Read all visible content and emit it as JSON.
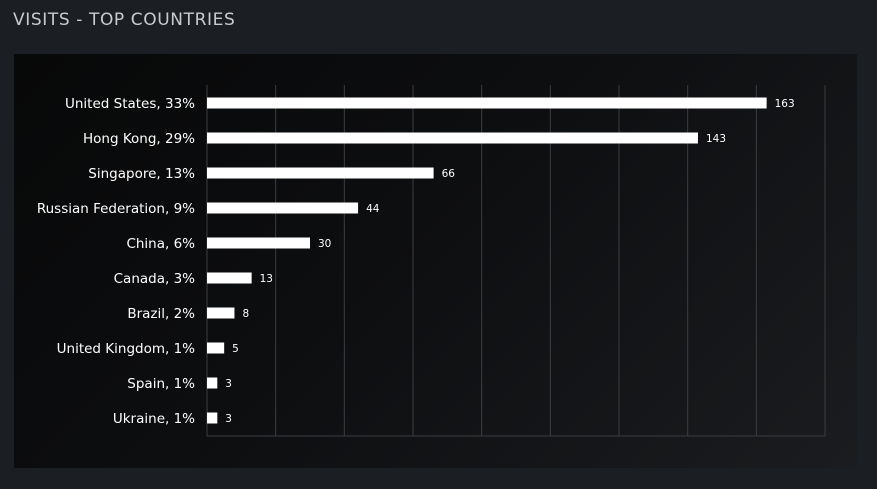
{
  "header": {
    "title": "VISITS - TOP COUNTRIES"
  },
  "chart_data": {
    "type": "bar",
    "orientation": "horizontal",
    "title": "VISITS - TOP COUNTRIES",
    "categories": [
      "United States, 33%",
      "Hong Kong, 29%",
      "Singapore, 13%",
      "Russian Federation, 9%",
      "China, 6%",
      "Canada, 3%",
      "Brazil, 2%",
      "United Kingdom, 1%",
      "Spain, 1%",
      "Ukraine, 1%"
    ],
    "values": [
      163,
      143,
      66,
      44,
      30,
      13,
      8,
      5,
      3,
      3
    ],
    "xlim": [
      0,
      180
    ],
    "grid": true,
    "bar_color": "#ffffff",
    "grid_color": "#3a3d41"
  }
}
